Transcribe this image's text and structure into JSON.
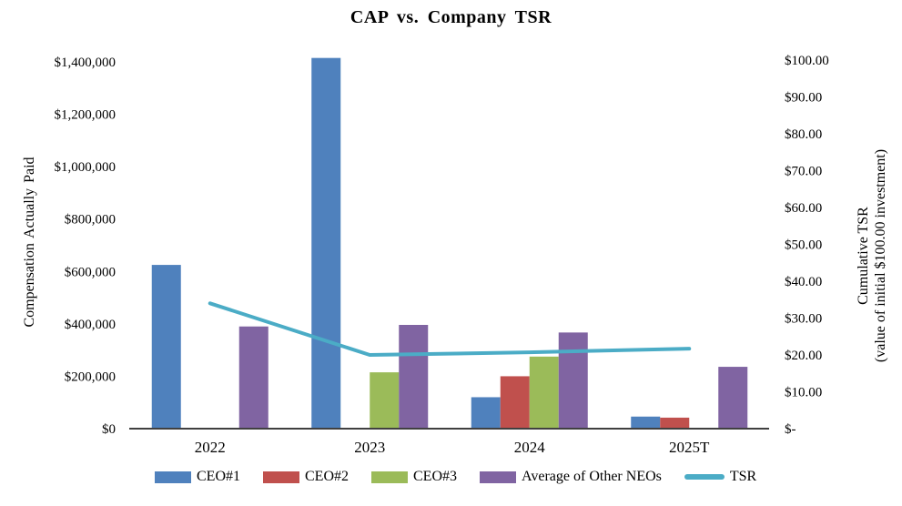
{
  "chart_data": {
    "type": "bar",
    "combo": "clustered bars on left axis + line on right axis",
    "title": "CAP vs. Company TSR",
    "categories": [
      "2022",
      "2023",
      "2024",
      "2025T"
    ],
    "bar_series": [
      {
        "name": "CEO#1",
        "color": "#4F81BD",
        "values": [
          625000,
          1415000,
          120000,
          46000
        ]
      },
      {
        "name": "CEO#2",
        "color": "#C0504D",
        "values": [
          null,
          null,
          200000,
          42000
        ]
      },
      {
        "name": "CEO#3",
        "color": "#9BBB59",
        "values": [
          null,
          215000,
          275000,
          null
        ]
      },
      {
        "name": "Average of Other NEOs",
        "color": "#8064A2",
        "values": [
          390000,
          396000,
          367000,
          236000
        ]
      }
    ],
    "line_series": {
      "name": "TSR",
      "color": "#4BACC6",
      "axis": "right",
      "values": [
        34.0,
        20.0,
        20.7,
        21.7
      ]
    },
    "left_axis": {
      "title": "Compensation Actually Paid",
      "min": 0,
      "max": 1400000,
      "tick_labels": [
        "$0",
        "$200,000",
        "$400,000",
        "$600,000",
        "$800,000",
        "$1,000,000",
        "$1,200,000",
        "$1,400,000"
      ]
    },
    "right_axis": {
      "title_line1": "Cumulative TSR",
      "title_line2": "(value of initial $100.00 investment)",
      "min": 0,
      "max": 100,
      "tick_labels": [
        "$-",
        "$10.00",
        "$20.00",
        "$30.00",
        "$40.00",
        "$50.00",
        "$60.00",
        "$70.00",
        "$80.00",
        "$90.00",
        "$100.00"
      ]
    },
    "legend_position": "bottom",
    "grid": false,
    "axis_color": "#404040"
  }
}
